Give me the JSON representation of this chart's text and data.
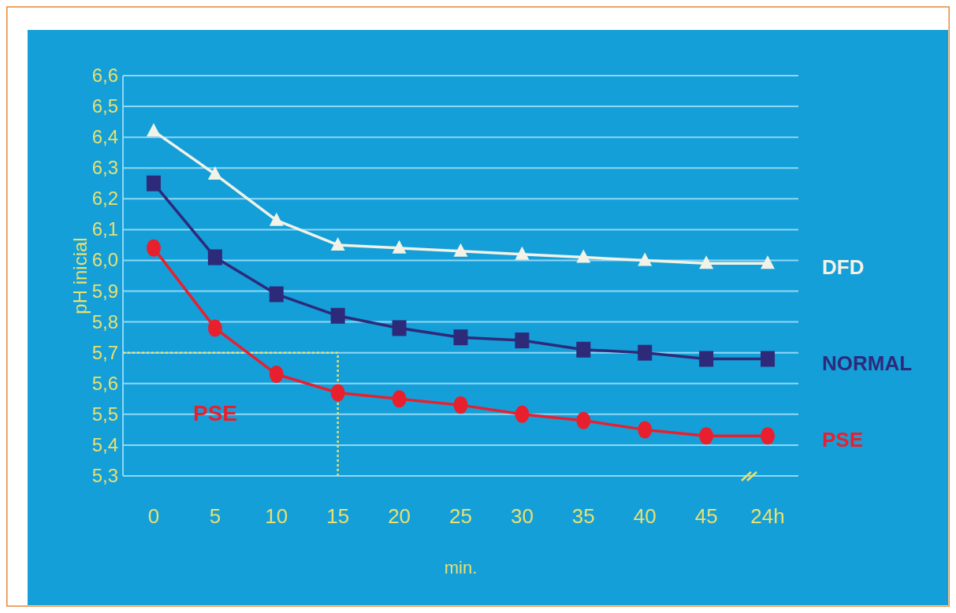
{
  "chart_data": {
    "type": "line",
    "ylabel": "pH inicial",
    "xlabel": "min.",
    "categories": [
      "0",
      "5",
      "10",
      "15",
      "20",
      "25",
      "30",
      "35",
      "40",
      "45",
      "24h"
    ],
    "ylim": [
      5.3,
      6.6
    ],
    "yticks": [
      {
        "value": 5.3,
        "label": "5,3"
      },
      {
        "value": 5.4,
        "label": "5,4"
      },
      {
        "value": 5.5,
        "label": "5,5"
      },
      {
        "value": 5.6,
        "label": "5,6"
      },
      {
        "value": 5.7,
        "label": "5,7"
      },
      {
        "value": 5.8,
        "label": "5,8"
      },
      {
        "value": 5.9,
        "label": "5,9"
      },
      {
        "value": 6.0,
        "label": "6,0"
      },
      {
        "value": 6.1,
        "label": "6,1"
      },
      {
        "value": 6.2,
        "label": "6,2"
      },
      {
        "value": 6.3,
        "label": "6,3"
      },
      {
        "value": 6.4,
        "label": "6,4"
      },
      {
        "value": 6.5,
        "label": "6,5"
      },
      {
        "value": 6.6,
        "label": "6,6"
      }
    ],
    "grid": "y",
    "series": [
      {
        "name": "DFD",
        "color": "#f2f2e6",
        "marker": "triangle",
        "values": [
          6.42,
          6.28,
          6.13,
          6.05,
          6.04,
          6.03,
          6.02,
          6.01,
          6.0,
          5.99,
          5.99
        ]
      },
      {
        "name": "NORMAL",
        "color": "#2e2a7a",
        "marker": "square",
        "values": [
          6.25,
          6.01,
          5.89,
          5.82,
          5.78,
          5.75,
          5.74,
          5.71,
          5.7,
          5.68,
          5.68
        ]
      },
      {
        "name": "PSE",
        "color": "#e8202e",
        "marker": "circle",
        "values": [
          6.04,
          5.78,
          5.63,
          5.57,
          5.55,
          5.53,
          5.5,
          5.48,
          5.45,
          5.43,
          5.43
        ]
      }
    ],
    "ref_lines": [
      {
        "axis": "y",
        "value": 5.7,
        "color": "#e8e070",
        "line_style": "dotted"
      },
      {
        "axis": "x",
        "value": "15",
        "color": "#e8e070",
        "line_style": "dotted"
      }
    ],
    "annotations": [
      "PSE"
    ]
  }
}
